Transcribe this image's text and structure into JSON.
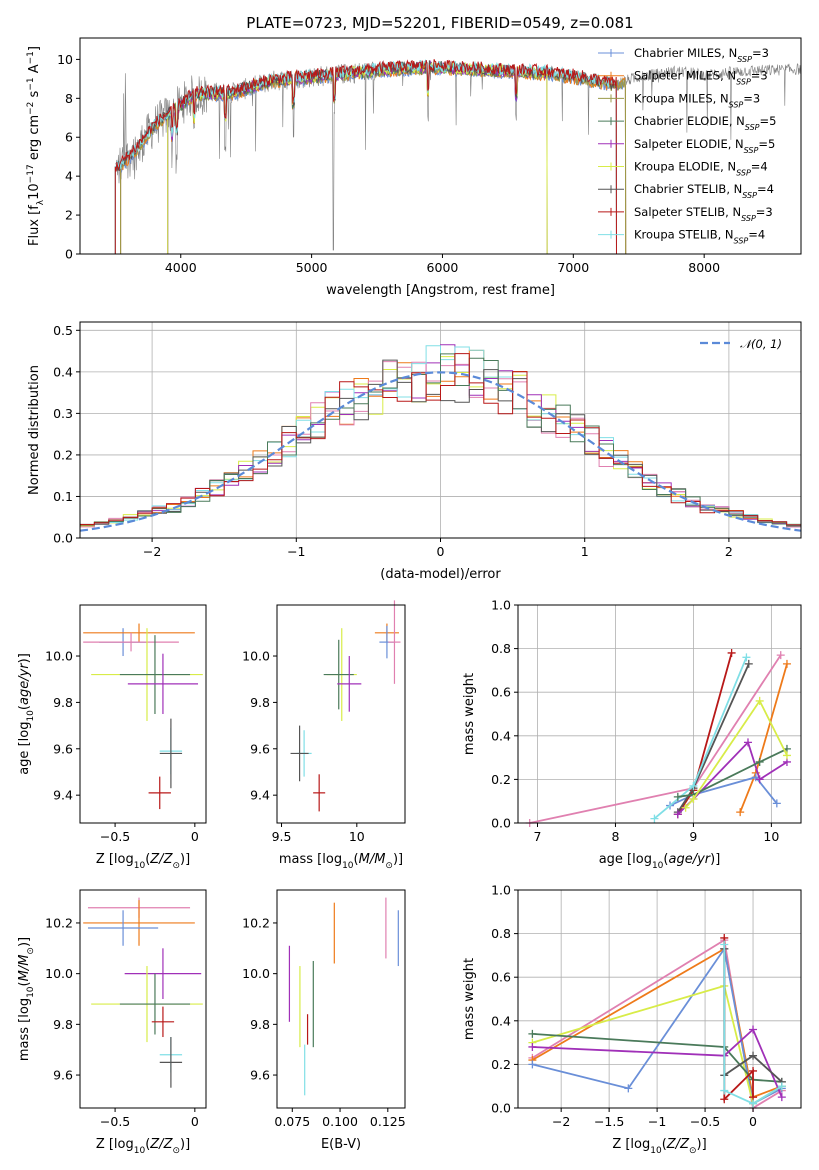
{
  "title": "PLATE=0723, MJD=52201, FIBERID=0549, z=0.081",
  "colors": {
    "Chabrier MILES": "#6a8fd8",
    "Salpeter MILES": "#ee7a1a",
    "Kroupa MILES": "#9a9a4a",
    "Chabrier ELODIE": "#4a7a5a",
    "Salpeter ELODIE": "#a030b8",
    "Kroupa ELODIE": "#d8ec48",
    "Chabrier STELIB": "#555555",
    "Salpeter STELIB": "#b81818",
    "Kroupa STELIB": "#80dfe6",
    "pink": "#e080b0",
    "data": "#808080"
  },
  "chart_data": [
    {
      "id": "spectrum",
      "type": "line",
      "title": "PLATE=0723, MJD=52201, FIBERID=0549, z=0.081",
      "xlabel": "wavelength [Angstrom, rest frame]",
      "ylabel": "Flux [f_λ10^-17 erg cm^-2 s^-1 A^-1]",
      "xlim": [
        3230,
        8740
      ],
      "ylim": [
        0,
        11.1
      ],
      "xticks": [
        4000,
        5000,
        6000,
        7000,
        8000
      ],
      "yticks": [
        0,
        2,
        4,
        6,
        8,
        10
      ],
      "grid": false,
      "legend_position": "top-right",
      "legend": [
        {
          "label": "Chabrier MILES, N",
          "sub": "SSP",
          "suffix": "=3",
          "series": "Chabrier MILES"
        },
        {
          "label": "Salpeter MILES, N",
          "sub": "SSP",
          "suffix": "=3",
          "series": "Salpeter MILES"
        },
        {
          "label": "Kroupa MILES, N",
          "sub": "SSP",
          "suffix": "=3",
          "series": "Kroupa MILES"
        },
        {
          "label": "Chabrier ELODIE, N",
          "sub": "SSP",
          "suffix": "=5",
          "series": "Chabrier ELODIE"
        },
        {
          "label": "Salpeter ELODIE, N",
          "sub": "SSP",
          "suffix": "=5",
          "series": "Salpeter ELODIE"
        },
        {
          "label": "Kroupa ELODIE, N",
          "sub": "SSP",
          "suffix": "=4",
          "series": "Kroupa ELODIE"
        },
        {
          "label": "Chabrier STELIB, N",
          "sub": "SSP",
          "suffix": "=4",
          "series": "Chabrier STELIB"
        },
        {
          "label": "Salpeter STELIB, N",
          "sub": "SSP",
          "suffix": "=3",
          "series": "Salpeter STELIB"
        },
        {
          "label": "Kroupa STELIB, N",
          "sub": "SSP",
          "suffix": "=4",
          "series": "Kroupa STELIB"
        }
      ],
      "continuum": [
        [
          3500,
          4.3
        ],
        [
          3650,
          5.3
        ],
        [
          3800,
          6.6
        ],
        [
          3950,
          7.4
        ],
        [
          4100,
          8.2
        ],
        [
          4400,
          8.3
        ],
        [
          4700,
          8.9
        ],
        [
          5000,
          9.1
        ],
        [
          5300,
          9.3
        ],
        [
          5600,
          9.5
        ],
        [
          5900,
          9.6
        ],
        [
          6200,
          9.5
        ],
        [
          6500,
          9.4
        ],
        [
          6800,
          9.3
        ],
        [
          7100,
          9.0
        ],
        [
          7300,
          8.7
        ],
        [
          7500,
          9.1
        ],
        [
          7800,
          9.4
        ],
        [
          8000,
          9.2
        ],
        [
          8300,
          9.4
        ],
        [
          8740,
          9.5
        ]
      ],
      "model_ranges": {
        "MILES": [
          3540,
          7400
        ],
        "ELODIE": [
          3900,
          6800
        ],
        "STELIB": [
          3500,
          7330
        ]
      }
    },
    {
      "id": "residuals",
      "type": "line",
      "xlabel": "(data-model)/error",
      "ylabel": "Normed distribution",
      "xlim": [
        -2.5,
        2.5
      ],
      "ylim": [
        0,
        0.52
      ],
      "xticks": [
        -2,
        -1,
        0,
        1,
        2
      ],
      "yticks": [
        0.0,
        0.1,
        0.2,
        0.3,
        0.4,
        0.5
      ],
      "grid": true,
      "legend_position": "top-right",
      "legend": [
        {
          "label": "𝒩(0, 1)"
        }
      ],
      "normal": {
        "mean": 0,
        "sigma": 1
      },
      "bin_width": 0.1
    },
    {
      "id": "age-vs-Z",
      "type": "scatter",
      "xlabel": "Z [log10(Z/Z⊙)]",
      "ylabel": "age  [log10(age/yr)]",
      "xlim": [
        -0.72,
        0.07
      ],
      "ylim": [
        9.28,
        10.22
      ],
      "xticks": [
        -0.5,
        0.0
      ],
      "yticks": [
        9.4,
        9.6,
        9.8,
        10.0
      ],
      "points": [
        {
          "series": "Chabrier MILES",
          "x": -0.45,
          "xerr": 0.15,
          "y": 10.06,
          "yerr": 0.06
        },
        {
          "series": "Salpeter MILES",
          "x": -0.35,
          "xerr": 0.35,
          "y": 10.1,
          "yerr": 0.04
        },
        {
          "series": "pink",
          "x": -0.4,
          "xerr": 0.3,
          "y": 10.06,
          "yerr": 0.04
        },
        {
          "series": "Kroupa ELODIE",
          "x": -0.3,
          "xerr": 0.35,
          "y": 9.92,
          "yerr": 0.2
        },
        {
          "series": "Chabrier ELODIE",
          "x": -0.25,
          "xerr": 0.22,
          "y": 9.92,
          "yerr": 0.17
        },
        {
          "series": "Salpeter ELODIE",
          "x": -0.2,
          "xerr": 0.22,
          "y": 9.88,
          "yerr": 0.13
        },
        {
          "series": "Kroupa STELIB",
          "x": -0.15,
          "xerr": 0.07,
          "y": 9.59,
          "yerr": 0.1
        },
        {
          "series": "Chabrier STELIB",
          "x": -0.15,
          "xerr": 0.07,
          "y": 9.58,
          "yerr": 0.15
        },
        {
          "series": "Salpeter STELIB",
          "x": -0.22,
          "xerr": 0.07,
          "y": 9.41,
          "yerr": 0.07
        }
      ]
    },
    {
      "id": "age-vs-mass",
      "type": "scatter",
      "xlabel": "mass [log10(M/M⊙)]",
      "ylabel": "",
      "xlim": [
        9.47,
        10.32
      ],
      "ylim": [
        9.28,
        10.22
      ],
      "xticks": [
        9.5,
        10.0
      ],
      "yticks": [
        9.4,
        9.6,
        9.8,
        10.0
      ],
      "points": [
        {
          "series": "Salpeter MILES",
          "x": 10.2,
          "xerr": 0.08,
          "y": 10.1,
          "yerr": 0.04
        },
        {
          "series": "Chabrier MILES",
          "x": 10.2,
          "xerr": 0.05,
          "y": 10.06,
          "yerr": 0.07
        },
        {
          "series": "pink",
          "x": 10.25,
          "xerr": 0.04,
          "y": 10.06,
          "yerr": 0.18
        },
        {
          "series": "Kroupa ELODIE",
          "x": 9.9,
          "xerr": 0.1,
          "y": 9.92,
          "yerr": 0.2
        },
        {
          "series": "Chabrier ELODIE",
          "x": 9.88,
          "xerr": 0.1,
          "y": 9.92,
          "yerr": 0.15
        },
        {
          "series": "Salpeter ELODIE",
          "x": 9.95,
          "xerr": 0.08,
          "y": 9.88,
          "yerr": 0.12
        },
        {
          "series": "Kroupa STELIB",
          "x": 9.65,
          "xerr": 0.05,
          "y": 9.58,
          "yerr": 0.1
        },
        {
          "series": "Chabrier STELIB",
          "x": 9.62,
          "xerr": 0.06,
          "y": 9.58,
          "yerr": 0.12
        },
        {
          "series": "Salpeter STELIB",
          "x": 9.75,
          "xerr": 0.04,
          "y": 9.41,
          "yerr": 0.08
        }
      ]
    },
    {
      "id": "weight-vs-age",
      "type": "line",
      "xlabel": "age  [log10(age/yr)]",
      "ylabel": "mass weight",
      "xlim": [
        6.75,
        10.38
      ],
      "ylim": [
        0,
        1.0
      ],
      "xticks": [
        7,
        8,
        9,
        10
      ],
      "yticks": [
        0.0,
        0.2,
        0.4,
        0.6,
        0.8,
        1.0
      ],
      "grid": true,
      "series": [
        {
          "series": "pink",
          "x": [
            6.9,
            9.0,
            10.12
          ],
          "y": [
            0.0,
            0.16,
            0.77
          ]
        },
        {
          "series": "Salpeter MILES",
          "x": [
            9.6,
            9.8,
            10.2
          ],
          "y": [
            0.05,
            0.23,
            0.73
          ]
        },
        {
          "series": "Chabrier MILES",
          "x": [
            8.7,
            9.0,
            9.8,
            10.07
          ],
          "y": [
            0.08,
            0.13,
            0.21,
            0.09
          ]
        },
        {
          "series": "Salpeter STELIB",
          "x": [
            8.8,
            9.0,
            9.49
          ],
          "y": [
            0.04,
            0.15,
            0.78
          ]
        },
        {
          "series": "Chabrier STELIB",
          "x": [
            8.8,
            9.0,
            9.71
          ],
          "y": [
            0.05,
            0.16,
            0.73
          ]
        },
        {
          "series": "Kroupa STELIB",
          "x": [
            8.5,
            9.0,
            9.68
          ],
          "y": [
            0.02,
            0.17,
            0.76
          ]
        },
        {
          "series": "Salpeter ELODIE",
          "x": [
            8.8,
            9.0,
            9.7,
            9.85,
            10.2
          ],
          "y": [
            0.04,
            0.11,
            0.37,
            0.2,
            0.28
          ]
        },
        {
          "series": "Chabrier ELODIE",
          "x": [
            8.8,
            9.0,
            9.85,
            10.2
          ],
          "y": [
            0.12,
            0.13,
            0.28,
            0.34
          ]
        },
        {
          "series": "Kroupa ELODIE",
          "x": [
            8.9,
            9.0,
            9.85,
            10.2
          ],
          "y": [
            0.07,
            0.11,
            0.56,
            0.31
          ]
        }
      ]
    },
    {
      "id": "mass-vs-Z",
      "type": "scatter",
      "xlabel": "Z [log10(Z/Z⊙)]",
      "ylabel": "mass [log10(M/M⊙)]",
      "xlim": [
        -0.72,
        0.07
      ],
      "ylim": [
        9.47,
        10.33
      ],
      "xticks": [
        -0.5,
        0.0
      ],
      "yticks": [
        9.6,
        9.8,
        10.0,
        10.2
      ],
      "points": [
        {
          "series": "pink",
          "x": -0.35,
          "xerr": 0.32,
          "y": 10.26,
          "yerr": 0.04
        },
        {
          "series": "Salpeter MILES",
          "x": -0.35,
          "xerr": 0.35,
          "y": 10.2,
          "yerr": 0.09
        },
        {
          "series": "Chabrier MILES",
          "x": -0.45,
          "xerr": 0.22,
          "y": 10.18,
          "yerr": 0.07
        },
        {
          "series": "Salpeter ELODIE",
          "x": -0.2,
          "xerr": 0.24,
          "y": 10.0,
          "yerr": 0.1
        },
        {
          "series": "Kroupa ELODIE",
          "x": -0.3,
          "xerr": 0.35,
          "y": 9.88,
          "yerr": 0.15
        },
        {
          "series": "Chabrier ELODIE",
          "x": -0.25,
          "xerr": 0.22,
          "y": 9.88,
          "yerr": 0.12
        },
        {
          "series": "Salpeter STELIB",
          "x": -0.2,
          "xerr": 0.07,
          "y": 9.81,
          "yerr": 0.06
        },
        {
          "series": "Kroupa STELIB",
          "x": -0.15,
          "xerr": 0.07,
          "y": 9.68,
          "yerr": 0.07
        },
        {
          "series": "Chabrier STELIB",
          "x": -0.15,
          "xerr": 0.07,
          "y": 9.65,
          "yerr": 0.1
        }
      ]
    },
    {
      "id": "mass-vs-ebv",
      "type": "scatter",
      "xlabel": "E(B-V)",
      "ylabel": "",
      "xlim": [
        0.067,
        0.134
      ],
      "ylim": [
        9.47,
        10.33
      ],
      "xticks": [
        0.075,
        0.1,
        0.125
      ],
      "yticks": [
        9.6,
        9.8,
        10.0,
        10.2
      ],
      "points": [
        {
          "series": "Salpeter ELODIE",
          "x": 0.0735,
          "y": 9.96,
          "yerr": 0.15
        },
        {
          "series": "Kroupa ELODIE",
          "x": 0.079,
          "y": 9.87,
          "yerr": 0.16
        },
        {
          "series": "Kroupa STELIB",
          "x": 0.0815,
          "y": 9.62,
          "yerr": 0.1
        },
        {
          "series": "Salpeter STELIB",
          "x": 0.083,
          "y": 9.78,
          "yerr": 0.06
        },
        {
          "series": "Chabrier ELODIE",
          "x": 0.086,
          "y": 9.88,
          "yerr": 0.17
        },
        {
          "series": "Salpeter MILES",
          "x": 0.097,
          "y": 10.16,
          "yerr": 0.12
        },
        {
          "series": "pink",
          "x": 0.124,
          "y": 10.18,
          "yerr": 0.12
        },
        {
          "series": "Chabrier MILES",
          "x": 0.1305,
          "y": 10.14,
          "yerr": 0.11
        }
      ]
    },
    {
      "id": "weight-vs-Z",
      "type": "line",
      "xlabel": "Z [log10(Z/Z⊙)]",
      "ylabel": "mass weight",
      "xlim": [
        -2.45,
        0.5
      ],
      "ylim": [
        0,
        1.0
      ],
      "xticks": [
        -2.0,
        -1.5,
        -1.0,
        -0.5,
        0.0
      ],
      "yticks": [
        0.0,
        0.2,
        0.4,
        0.6,
        0.8,
        1.0
      ],
      "grid": true,
      "series": [
        {
          "series": "pink",
          "x": [
            -2.3,
            -0.3,
            0.0,
            0.3
          ],
          "y": [
            0.23,
            0.77,
            0.0,
            0.08
          ]
        },
        {
          "series": "Salpeter MILES",
          "x": [
            -2.3,
            -0.3,
            0.0,
            0.3
          ],
          "y": [
            0.22,
            0.73,
            0.05,
            0.1
          ]
        },
        {
          "series": "Chabrier MILES",
          "x": [
            -2.3,
            -1.3,
            -0.3,
            0.0,
            0.3
          ],
          "y": [
            0.2,
            0.09,
            0.73,
            0.02,
            0.09
          ]
        },
        {
          "series": "Kroupa ELODIE",
          "x": [
            -2.3,
            -0.3,
            0.0,
            0.3
          ],
          "y": [
            0.3,
            0.56,
            0.02,
            0.1
          ]
        },
        {
          "series": "Chabrier ELODIE",
          "x": [
            -2.3,
            -0.3,
            0.0,
            0.3
          ],
          "y": [
            0.34,
            0.28,
            0.13,
            0.12
          ]
        },
        {
          "series": "Salpeter ELODIE",
          "x": [
            -2.3,
            -0.3,
            0.0,
            0.3
          ],
          "y": [
            0.28,
            0.24,
            0.36,
            0.05
          ]
        },
        {
          "series": "Salpeter STELIB",
          "x": [
            -0.3,
            -0.3,
            0.0,
            0.0
          ],
          "y": [
            0.78,
            0.04,
            0.17,
            0.05
          ]
        },
        {
          "series": "Chabrier STELIB",
          "x": [
            -0.3,
            -0.3,
            0.0,
            0.3
          ],
          "y": [
            0.73,
            0.15,
            0.24,
            0.12
          ]
        },
        {
          "series": "Kroupa STELIB",
          "x": [
            -0.3,
            -0.3,
            0.0,
            0.3
          ],
          "y": [
            0.75,
            0.08,
            0.02,
            0.1
          ]
        }
      ]
    }
  ]
}
